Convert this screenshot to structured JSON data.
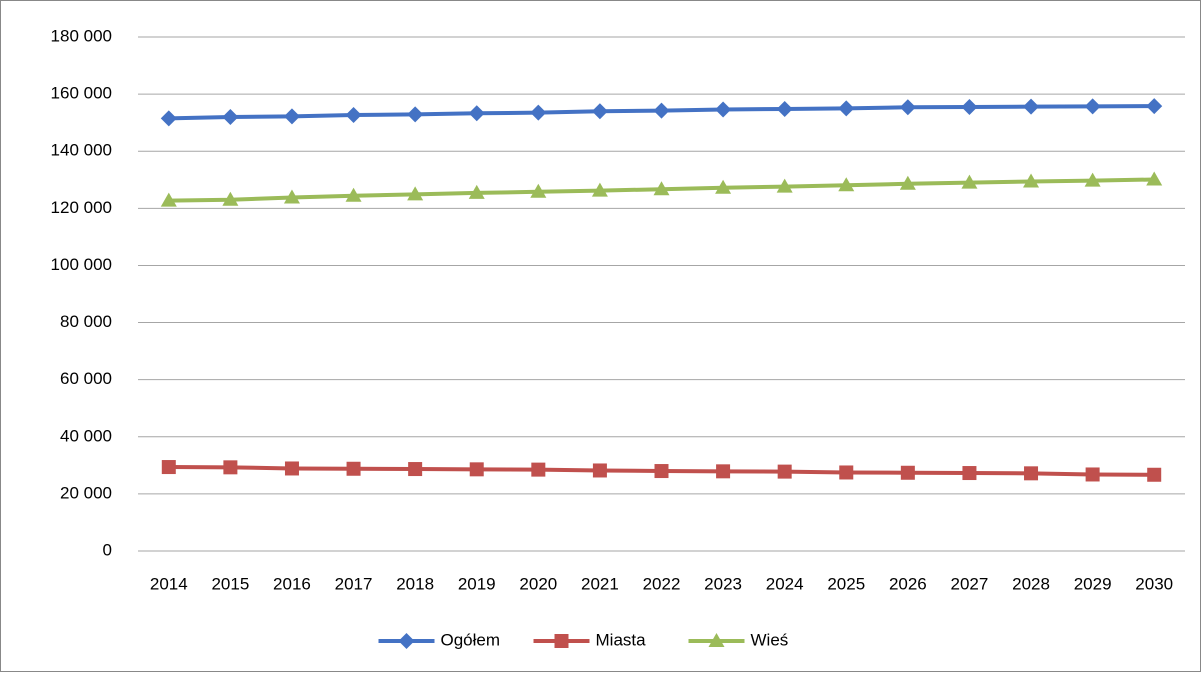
{
  "chart_data": {
    "type": "line",
    "categories": [
      "2014",
      "2015",
      "2016",
      "2017",
      "2018",
      "2019",
      "2020",
      "2021",
      "2022",
      "2023",
      "2024",
      "2025",
      "2026",
      "2027",
      "2028",
      "2029",
      "2030"
    ],
    "series": [
      {
        "name": "Ogółem",
        "color": "#4472c4",
        "marker": "diamond",
        "values": [
          151500,
          152000,
          152200,
          152700,
          152900,
          153300,
          153500,
          154000,
          154200,
          154600,
          154800,
          155000,
          155400,
          155500,
          155600,
          155700,
          155800
        ]
      },
      {
        "name": "Miasta",
        "color": "#c0504d",
        "marker": "square",
        "values": [
          29400,
          29300,
          28900,
          28800,
          28700,
          28600,
          28500,
          28200,
          28000,
          27900,
          27800,
          27500,
          27400,
          27300,
          27200,
          26800,
          26700
        ]
      },
      {
        "name": "Wieś",
        "color": "#9bbb59",
        "marker": "triangle",
        "values": [
          122700,
          123000,
          123800,
          124400,
          124900,
          125400,
          125800,
          126200,
          126700,
          127200,
          127600,
          128100,
          128600,
          129000,
          129400,
          129700,
          130100
        ]
      }
    ],
    "ylim": [
      0,
      180000
    ],
    "yticks": [
      0,
      {
        "value": 20000,
        "label": "20 000"
      },
      {
        "value": 40000,
        "label": "40 000"
      },
      {
        "value": 60000,
        "label": "60 000"
      },
      {
        "value": 80000,
        "label": "80 000"
      },
      {
        "value": 100000,
        "label": "100 000"
      },
      {
        "value": 120000,
        "label": "120 000"
      },
      {
        "value": 140000,
        "label": "140 000"
      },
      {
        "value": 160000,
        "label": "160 000"
      },
      {
        "value": 180000,
        "label": "180 000"
      }
    ],
    "grid": true,
    "legend": "bottom"
  }
}
